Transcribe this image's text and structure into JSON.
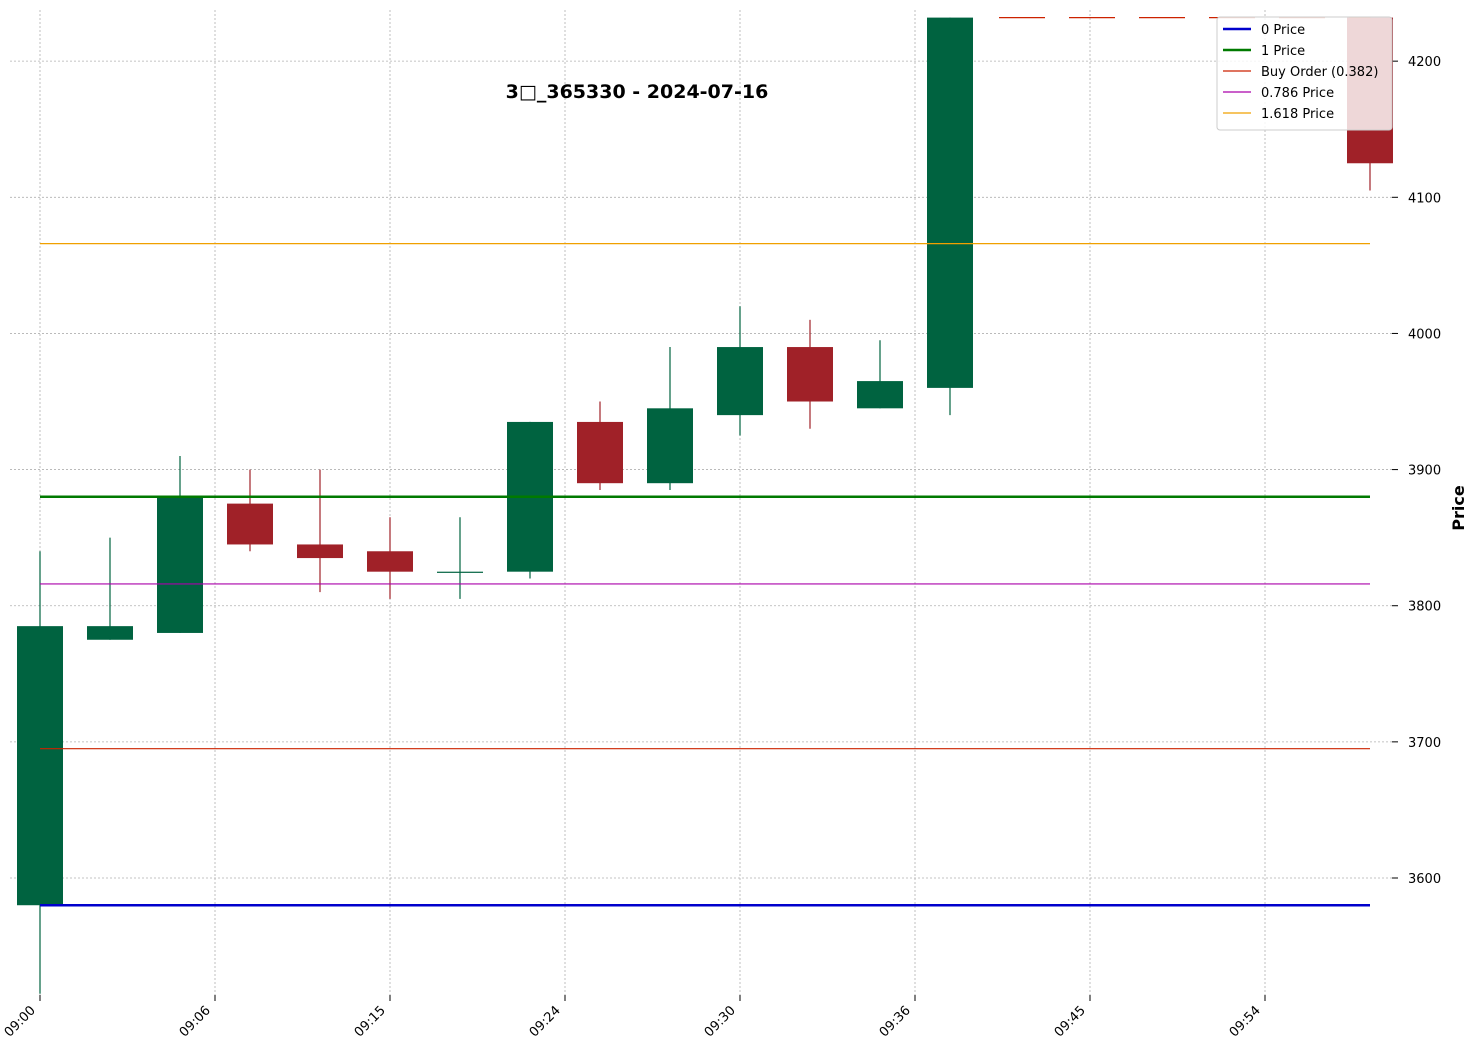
{
  "chart_data": {
    "type": "candlestick",
    "title": "3□_365330 - 2024-07-16",
    "ylabel": "Price",
    "xlabel": "",
    "ylim": [
      3517,
      4232
    ],
    "y_ticks": [
      3600,
      3700,
      3800,
      3900,
      4000,
      4100,
      4200
    ],
    "x_tick_labels": [
      {
        "index": 0,
        "label": "09:00"
      },
      {
        "index": 2.5,
        "label": "09:06"
      },
      {
        "index": 5,
        "label": "09:15"
      },
      {
        "index": 7.5,
        "label": "09:24"
      },
      {
        "index": 10,
        "label": "09:30"
      },
      {
        "index": 12.5,
        "label": "09:36"
      },
      {
        "index": 15,
        "label": "09:45"
      },
      {
        "index": 17.5,
        "label": "09:54"
      }
    ],
    "grid": true,
    "legend_placement": "top-right",
    "candles": [
      {
        "index": 0,
        "open": 3580,
        "high": 3840,
        "low": 3515,
        "close": 3785
      },
      {
        "index": 1,
        "open": 3775,
        "high": 3850,
        "low": 3775,
        "close": 3785
      },
      {
        "index": 2,
        "open": 3780,
        "high": 3910,
        "low": 3780,
        "close": 3880
      },
      {
        "index": 3,
        "open": 3875,
        "high": 3900,
        "low": 3840,
        "close": 3845
      },
      {
        "index": 4,
        "open": 3845,
        "high": 3900,
        "low": 3810,
        "close": 3835
      },
      {
        "index": 5,
        "open": 3840,
        "high": 3865,
        "low": 3805,
        "close": 3825
      },
      {
        "index": 6,
        "open": 3825,
        "high": 3865,
        "low": 3805,
        "close": 3825
      },
      {
        "index": 7,
        "open": 3825,
        "high": 3935,
        "low": 3820,
        "close": 3935
      },
      {
        "index": 8,
        "open": 3935,
        "high": 3950,
        "low": 3885,
        "close": 3890
      },
      {
        "index": 9,
        "open": 3890,
        "high": 3990,
        "low": 3885,
        "close": 3945
      },
      {
        "index": 10,
        "open": 3940,
        "high": 4020,
        "low": 3925,
        "close": 3990
      },
      {
        "index": 11,
        "open": 3990,
        "high": 4010,
        "low": 3930,
        "close": 3950
      },
      {
        "index": 12,
        "open": 3945,
        "high": 3995,
        "low": 3945,
        "close": 3965
      },
      {
        "index": 13,
        "open": 3960,
        "high": 4232,
        "low": 3940,
        "close": 4232
      },
      {
        "index": 19,
        "open": 4232,
        "high": 4232,
        "low": 4105,
        "close": 4125
      }
    ],
    "up_color": "#006340",
    "down_color": "#a02128",
    "lines": [
      {
        "name": "0 Price",
        "value": 3580,
        "color": "#0000cc",
        "style": "solid",
        "width": 2.5
      },
      {
        "name": "1 Price",
        "value": 3880,
        "color": "#007a00",
        "style": "solid",
        "width": 2.5
      },
      {
        "name": "Buy Order (0.382)",
        "value": 3695,
        "color": "#cc2200",
        "style": "solid",
        "width": 1.2
      },
      {
        "name": "0.786 Price",
        "value": 3816,
        "color": "#aa00aa",
        "style": "solid",
        "width": 1.2
      },
      {
        "name": "1.618 Price",
        "value": 4066,
        "color": "#f0a000",
        "style": "solid",
        "width": 1.2
      },
      {
        "name": "",
        "value": 4232,
        "color": "#cc2200",
        "style": "dashed",
        "width": 1.2,
        "from_index": 13.7,
        "to_index": 19
      }
    ]
  }
}
